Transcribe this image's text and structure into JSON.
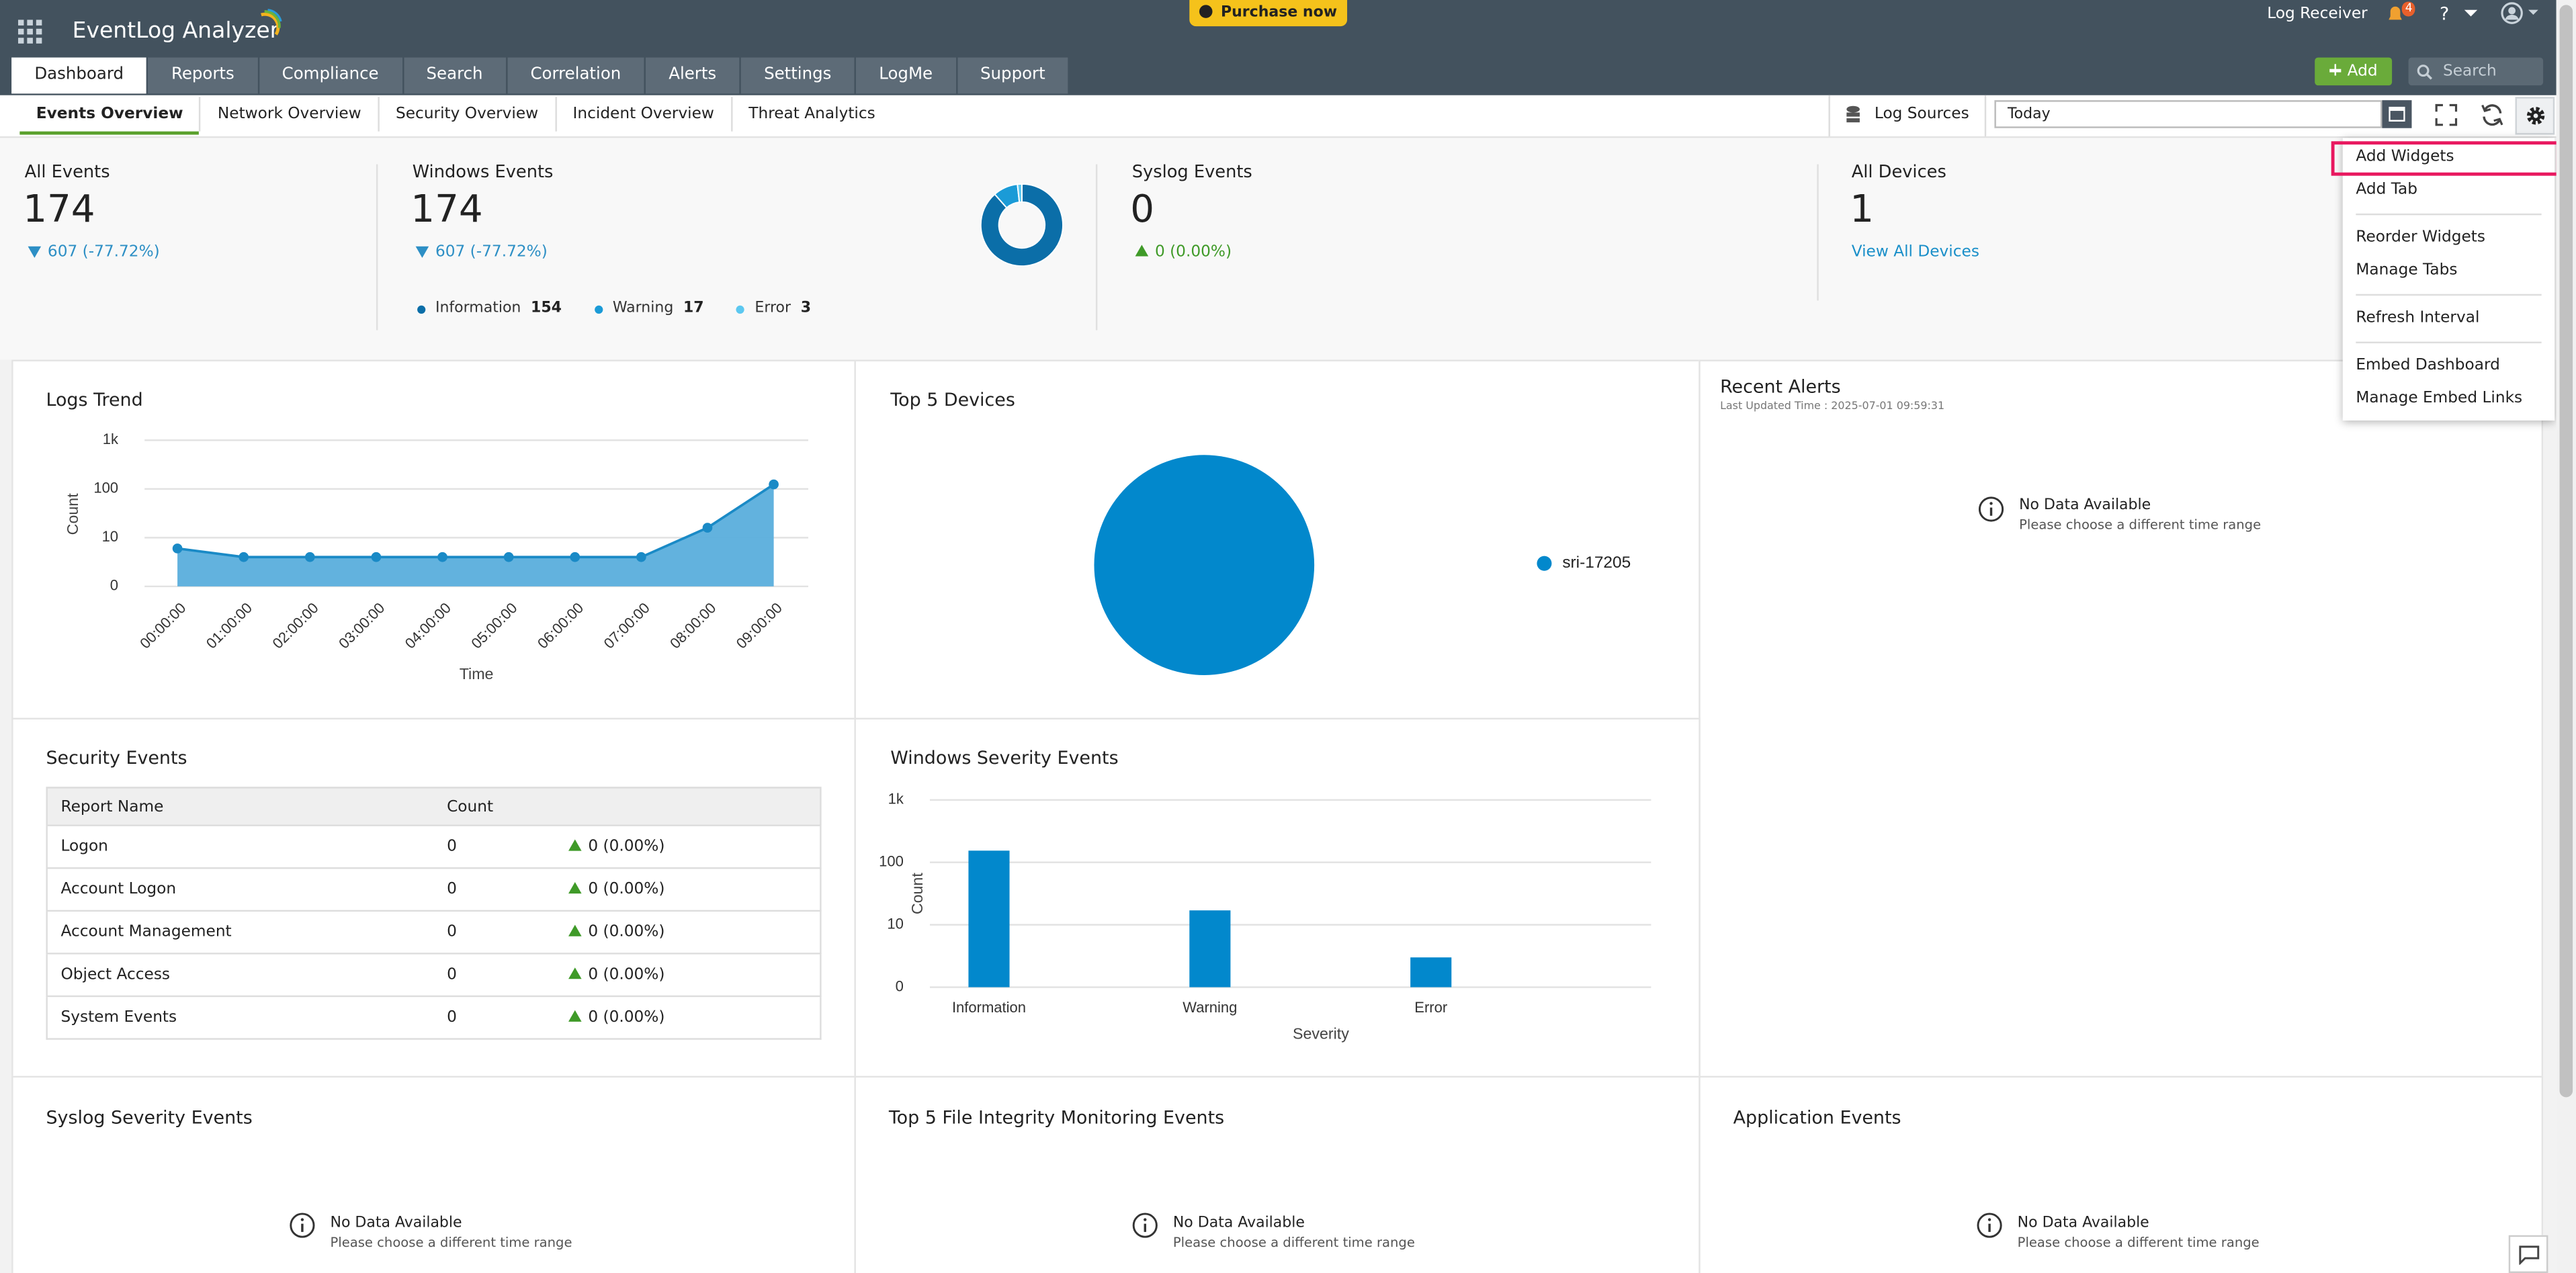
{
  "header": {
    "app_name": "EventLog Analyzer",
    "purchase": "Purchase now",
    "log_receiver": "Log Receiver",
    "notifications": "4",
    "help": "?",
    "add": "Add",
    "search": "Search"
  },
  "tabs": [
    "Dashboard",
    "Reports",
    "Compliance",
    "Search",
    "Correlation",
    "Alerts",
    "Settings",
    "LogMe",
    "Support"
  ],
  "subtabs": [
    "Events Overview",
    "Network Overview",
    "Security Overview",
    "Incident Overview",
    "Threat Analytics"
  ],
  "toolbar": {
    "log_sources": "Log Sources",
    "date_range": "Today"
  },
  "menu": [
    [
      "Add Widgets",
      "Add Tab"
    ],
    [
      "Reorder Widgets",
      "Manage Tabs"
    ],
    [
      "Refresh Interval"
    ],
    [
      "Embed Dashboard",
      "Manage Embed Links"
    ]
  ],
  "summary": {
    "all_events": {
      "title": "All Events",
      "count": "174",
      "change": "607 (-77.72%)"
    },
    "windows_events": {
      "title": "Windows Events",
      "count": "174",
      "change": "607 (-77.72%)"
    },
    "syslog_events": {
      "title": "Syslog Events",
      "count": "0",
      "change": "0 (0.00%)"
    },
    "all_devices": {
      "title": "All Devices",
      "count": "1",
      "link": "View All Devices"
    }
  },
  "security_events": {
    "title": "Security Events",
    "columns": [
      "Report Name",
      "Count"
    ],
    "rows": [
      [
        "Logon",
        "0",
        "0 (0.00%)"
      ],
      [
        "Account Logon",
        "0",
        "0 (0.00%)"
      ],
      [
        "Account Management",
        "0",
        "0 (0.00%)"
      ],
      [
        "Object Access",
        "0",
        "0 (0.00%)"
      ],
      [
        "System Events",
        "0",
        "0 (0.00%)"
      ]
    ]
  },
  "recent_alerts": {
    "title": "Recent Alerts",
    "updated": "Last Updated Time : 2025-07-01 09:59:31",
    "no_data": "No Data Available",
    "hint": "Please choose a different time range"
  },
  "empty_widgets": [
    {
      "title": "Syslog Severity Events",
      "no_data": "No Data Available",
      "hint": "Please choose a different time range"
    },
    {
      "title": "Top 5 File Integrity Monitoring Events",
      "no_data": "No Data Available",
      "hint": "Please choose a different time range"
    },
    {
      "title": "Application Events",
      "no_data": "No Data Available",
      "hint": "Please choose a different time range"
    }
  ],
  "chart_data": [
    {
      "type": "donut",
      "categories": [
        "Information",
        "Warning",
        "Error"
      ],
      "values": [
        154,
        17,
        3
      ],
      "colors": [
        "#0b6ea8",
        "#1b9bd7",
        "#5cc8f0"
      ]
    },
    {
      "type": "area",
      "title": "Logs Trend",
      "x_label": "Time",
      "y_label": "Count",
      "categories": [
        "00:00:00",
        "01:00:00",
        "02:00:00",
        "03:00:00",
        "04:00:00",
        "05:00:00",
        "06:00:00",
        "07:00:00",
        "08:00:00",
        "09:00:00"
      ],
      "values": [
        6,
        4,
        4,
        4,
        4,
        4,
        4,
        4,
        16,
        124
      ],
      "color": "#5aaedc",
      "line_color": "#1a8ac6",
      "log_scale": true,
      "ylim": [
        0,
        1000
      ],
      "yticks": [
        0,
        10,
        100,
        {
          "value": 1000,
          "label": "1k"
        }
      ],
      "grid": true
    },
    {
      "type": "pie",
      "title": "Top 5 Devices",
      "categories": [
        "sri-17205"
      ],
      "values": [
        174
      ],
      "colors": [
        "#0288cc"
      ]
    },
    {
      "type": "bar",
      "title": "Windows Severity Events",
      "x_label": "Severity",
      "y_label": "Count",
      "categories": [
        "Information",
        "Warning",
        "Error"
      ],
      "values": [
        154,
        17,
        3
      ],
      "color": "#0288cc",
      "log_scale": true,
      "ylim": [
        0,
        1000
      ],
      "yticks": [
        0,
        10,
        100,
        {
          "value": 1000,
          "label": "1k"
        }
      ],
      "grid": true
    }
  ]
}
